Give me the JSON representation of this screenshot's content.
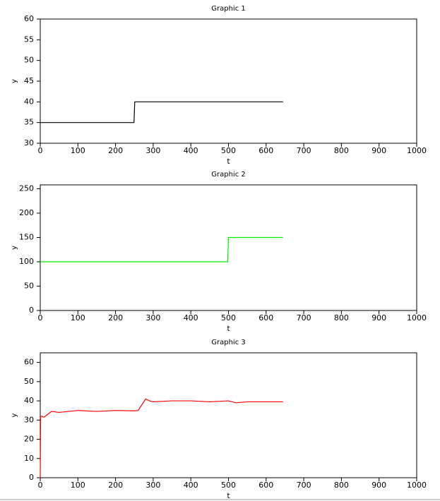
{
  "chart_data": [
    {
      "type": "line",
      "title": "Graphic 1",
      "x_label": "t",
      "y_label": "y",
      "x": [
        0,
        249,
        251,
        645
      ],
      "values": [
        35,
        35,
        40,
        40
      ],
      "color": "#000000",
      "xlim": [
        0,
        1000
      ],
      "ylim": [
        30,
        60
      ],
      "xticks": [
        0,
        100,
        200,
        300,
        400,
        500,
        600,
        700,
        800,
        900,
        1000
      ],
      "yticks": [
        30,
        35,
        40,
        45,
        50,
        55,
        60
      ]
    },
    {
      "type": "line",
      "title": "Graphic 2",
      "x_label": "t",
      "y_label": "y",
      "x": [
        0,
        498,
        500,
        645
      ],
      "values": [
        100,
        100,
        150,
        150
      ],
      "color": "#00ee00",
      "xlim": [
        0,
        1000
      ],
      "ylim": [
        0,
        258
      ],
      "xticks": [
        0,
        100,
        200,
        300,
        400,
        500,
        600,
        700,
        800,
        900,
        1000
      ],
      "yticks": [
        0,
        50,
        100,
        150,
        200,
        250
      ]
    },
    {
      "type": "line",
      "title": "Graphic 3",
      "x_label": "t",
      "y_label": "y",
      "x": [
        0,
        1,
        3,
        10,
        20,
        30,
        50,
        100,
        150,
        200,
        250,
        260,
        270,
        280,
        290,
        300,
        350,
        400,
        450,
        500,
        520,
        550,
        600,
        645
      ],
      "values": [
        0,
        32,
        32,
        31.5,
        33,
        34.5,
        34,
        35,
        34.5,
        35,
        34.8,
        35,
        38,
        41,
        40,
        39.5,
        40,
        40,
        39.5,
        40,
        39,
        39.5,
        39.5,
        39.5
      ],
      "color": "#ff0000",
      "xlim": [
        0,
        1000
      ],
      "ylim": [
        0,
        65
      ],
      "xticks": [
        0,
        100,
        200,
        300,
        400,
        500,
        600,
        700,
        800,
        900,
        1000
      ],
      "yticks": [
        0,
        10,
        20,
        30,
        40,
        50,
        60
      ]
    }
  ]
}
